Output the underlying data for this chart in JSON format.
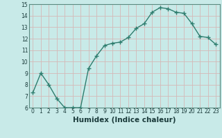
{
  "x": [
    0,
    1,
    2,
    3,
    4,
    5,
    6,
    7,
    8,
    9,
    10,
    11,
    12,
    13,
    14,
    15,
    16,
    17,
    18,
    19,
    20,
    21,
    22,
    23
  ],
  "y": [
    7.3,
    9.0,
    8.0,
    6.8,
    6.0,
    6.0,
    6.0,
    9.4,
    10.5,
    11.4,
    11.6,
    11.7,
    12.1,
    12.9,
    13.3,
    14.3,
    14.7,
    14.6,
    14.3,
    14.2,
    13.3,
    12.2,
    12.1,
    11.5
  ],
  "line_color": "#2e7d6e",
  "bg_color": "#c8eae8",
  "grid_color": "#d4b8b8",
  "xlabel": "Humidex (Indice chaleur)",
  "xlim": [
    -0.5,
    23.5
  ],
  "ylim": [
    6,
    15
  ],
  "yticks": [
    6,
    7,
    8,
    9,
    10,
    11,
    12,
    13,
    14,
    15
  ],
  "xticks": [
    0,
    1,
    2,
    3,
    4,
    5,
    6,
    7,
    8,
    9,
    10,
    11,
    12,
    13,
    14,
    15,
    16,
    17,
    18,
    19,
    20,
    21,
    22,
    23
  ],
  "marker": "+",
  "marker_size": 4,
  "linewidth": 1.0,
  "tick_fontsize": 5.5,
  "xlabel_fontsize": 7.5
}
